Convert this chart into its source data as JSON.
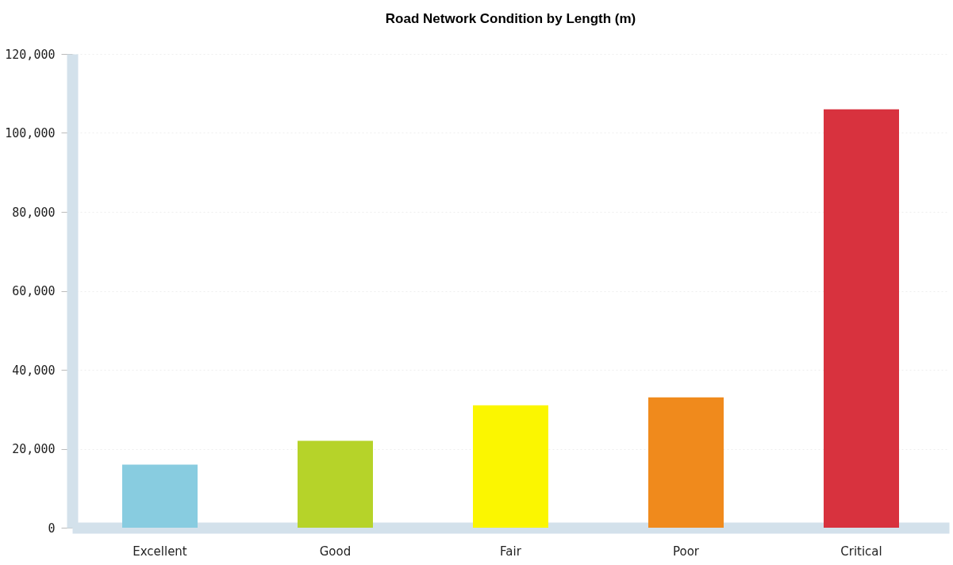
{
  "chart_data": {
    "type": "bar",
    "title": "Road Network Condition by Length (m)",
    "categories": [
      "Excellent",
      "Good",
      "Fair",
      "Poor",
      "Critical"
    ],
    "values": [
      16000,
      22000,
      31000,
      33000,
      106000
    ],
    "colors": [
      "#88cce0",
      "#b6d329",
      "#fbf600",
      "#f08a1c",
      "#d8323e"
    ],
    "ylim": [
      0,
      120000
    ],
    "yticks": [
      0,
      {
        "value": 20000,
        "label": "20,000"
      },
      {
        "value": 40000,
        "label": "40,000"
      },
      {
        "value": 60000,
        "label": "60,000"
      },
      {
        "value": 80000,
        "label": "80,000"
      },
      {
        "value": 100000,
        "label": "100,000"
      },
      {
        "value": 120000,
        "label": "120,000"
      }
    ],
    "grid": "y"
  }
}
